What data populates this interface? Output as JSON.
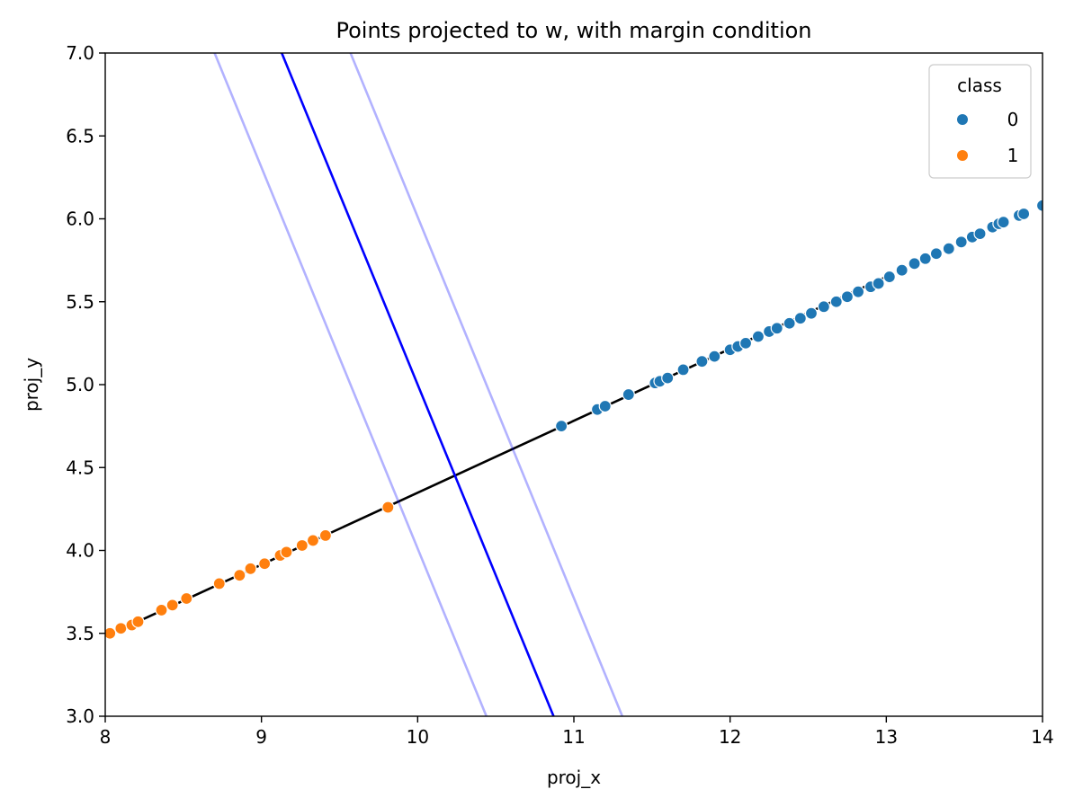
{
  "chart_data": {
    "type": "scatter",
    "title": "Points projected to w, with margin condition",
    "xlabel": "proj_x",
    "ylabel": "proj_y",
    "xlim": [
      8,
      14
    ],
    "ylim": [
      3.0,
      7.0
    ],
    "x_ticks": [
      8,
      9,
      10,
      11,
      12,
      13,
      14
    ],
    "y_ticks": [
      3.0,
      3.5,
      4.0,
      4.5,
      5.0,
      5.5,
      6.0,
      6.5,
      7.0
    ],
    "grid": false,
    "legend": {
      "title": "class",
      "placement": "top-right",
      "entries": [
        {
          "label": "0",
          "color": "#1f77b4"
        },
        {
          "label": "1",
          "color": "#ff7f0e"
        }
      ]
    },
    "series": [
      {
        "name": "0",
        "color": "#1f77b4",
        "points": [
          [
            10.92,
            4.75
          ],
          [
            11.15,
            4.85
          ],
          [
            11.2,
            4.87
          ],
          [
            11.35,
            4.94
          ],
          [
            11.52,
            5.01
          ],
          [
            11.55,
            5.02
          ],
          [
            11.6,
            5.04
          ],
          [
            11.7,
            5.09
          ],
          [
            11.82,
            5.14
          ],
          [
            11.9,
            5.17
          ],
          [
            12.0,
            5.21
          ],
          [
            12.05,
            5.23
          ],
          [
            12.1,
            5.25
          ],
          [
            12.18,
            5.29
          ],
          [
            12.25,
            5.32
          ],
          [
            12.3,
            5.34
          ],
          [
            12.38,
            5.37
          ],
          [
            12.45,
            5.4
          ],
          [
            12.52,
            5.43
          ],
          [
            12.6,
            5.47
          ],
          [
            12.68,
            5.5
          ],
          [
            12.75,
            5.53
          ],
          [
            12.82,
            5.56
          ],
          [
            12.9,
            5.59
          ],
          [
            12.95,
            5.61
          ],
          [
            13.02,
            5.65
          ],
          [
            13.1,
            5.69
          ],
          [
            13.18,
            5.73
          ],
          [
            13.25,
            5.76
          ],
          [
            13.32,
            5.79
          ],
          [
            13.4,
            5.82
          ],
          [
            13.48,
            5.86
          ],
          [
            13.55,
            5.89
          ],
          [
            13.6,
            5.91
          ],
          [
            13.68,
            5.95
          ],
          [
            13.72,
            5.97
          ],
          [
            13.75,
            5.98
          ],
          [
            13.85,
            6.02
          ],
          [
            13.88,
            6.03
          ],
          [
            14.0,
            6.08
          ]
        ]
      },
      {
        "name": "1",
        "color": "#ff7f0e",
        "points": [
          [
            8.03,
            3.5
          ],
          [
            8.1,
            3.53
          ],
          [
            8.17,
            3.55
          ],
          [
            8.21,
            3.57
          ],
          [
            8.36,
            3.64
          ],
          [
            8.43,
            3.67
          ],
          [
            8.52,
            3.71
          ],
          [
            8.73,
            3.8
          ],
          [
            8.86,
            3.85
          ],
          [
            8.93,
            3.89
          ],
          [
            9.02,
            3.92
          ],
          [
            9.12,
            3.97
          ],
          [
            9.16,
            3.99
          ],
          [
            9.26,
            4.03
          ],
          [
            9.33,
            4.06
          ],
          [
            9.41,
            4.09
          ],
          [
            9.81,
            4.26
          ]
        ]
      }
    ],
    "lines": [
      {
        "color": "#000000",
        "opacity": 1.0,
        "x": [
          8.0,
          13.0
        ],
        "y": [
          3.48,
          5.65
        ]
      },
      {
        "color": "#0000ff",
        "opacity": 1.0,
        "x": [
          9.13,
          10.87
        ],
        "y": [
          7.0,
          3.0
        ]
      },
      {
        "color": "#0000ff",
        "opacity": 0.3,
        "x": [
          8.7,
          10.44
        ],
        "y": [
          7.0,
          3.0
        ]
      },
      {
        "color": "#0000ff",
        "opacity": 0.3,
        "x": [
          9.57,
          11.31
        ],
        "y": [
          7.0,
          3.0
        ]
      }
    ]
  }
}
